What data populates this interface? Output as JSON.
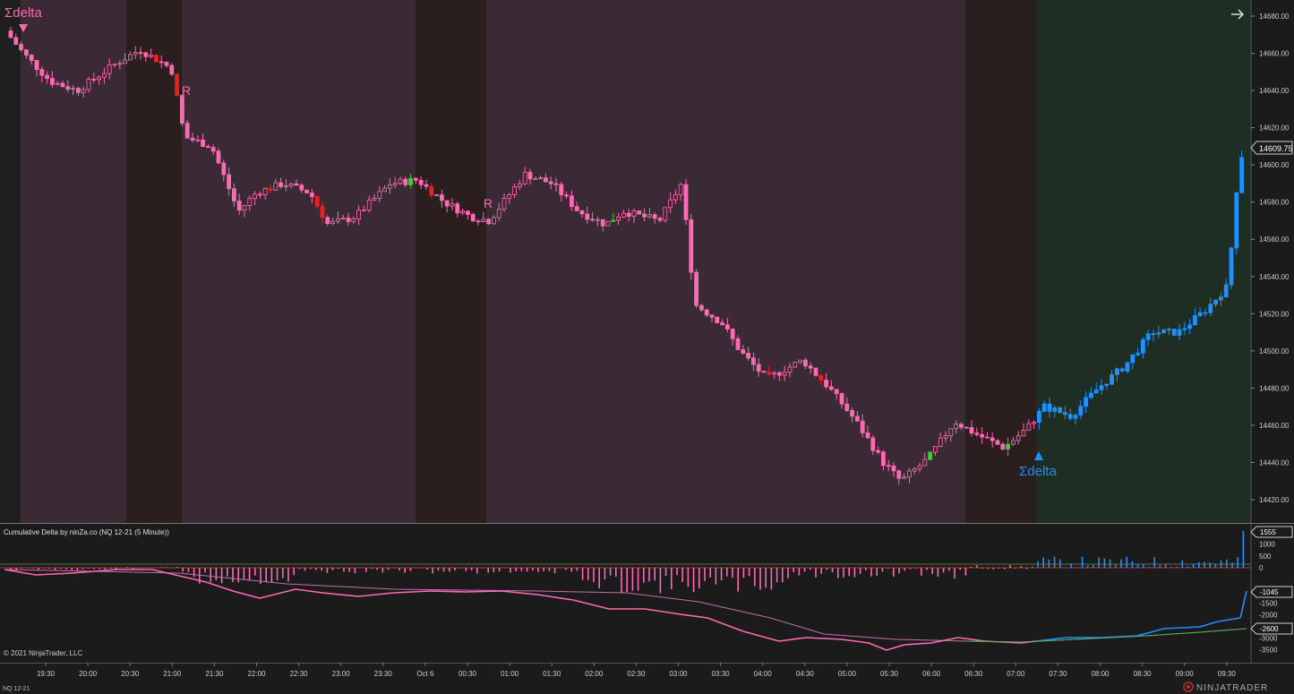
{
  "main_panel": {
    "signal_top": "Σdelta",
    "signal_bottom": "Σdelta",
    "r_marker_1": "R",
    "r_marker_2": "R",
    "price_badge": "14609.75",
    "price_axis_labels": [
      "14680.00",
      "14660.00",
      "14640.00",
      "14620.00",
      "14600.00",
      "14580.00",
      "14560.00",
      "14540.00",
      "14520.00",
      "14500.00",
      "14480.00",
      "14460.00",
      "14440.00",
      "14420.00"
    ],
    "price_axis_values": [
      14680,
      14660,
      14640,
      14620,
      14600,
      14580,
      14560,
      14540,
      14520,
      14500,
      14480,
      14460,
      14440,
      14420
    ],
    "arrow_icon": "→"
  },
  "indicator_panel": {
    "title": "Cumulative Delta by ninZa.co (NQ 12-21 (5 Minute))",
    "badge_top": "1555",
    "badge_mid": "-1045",
    "badge_low": "-2600",
    "axis_labels": [
      "1000",
      "500",
      "0",
      "-1500",
      "-2000",
      "-3000",
      "-3500"
    ],
    "axis_values": [
      1000,
      500,
      0,
      -1500,
      -2000,
      -3000,
      -3500
    ],
    "copyright": "© 2021 NinjaTrader, LLC"
  },
  "time_axis": {
    "labels": [
      "19:30",
      "20:00",
      "20:30",
      "21:00",
      "21:30",
      "22:00",
      "22:30",
      "23:00",
      "23:30",
      "Oct 6",
      "00:30",
      "01:00",
      "01:30",
      "02:00",
      "02:30",
      "03:00",
      "03:30",
      "04:00",
      "04:30",
      "05:00",
      "05:30",
      "06:00",
      "06:30",
      "07:00",
      "07:30",
      "08:00",
      "08:30",
      "09:00",
      "09:30"
    ]
  },
  "footer": {
    "instrument": "NQ 12-21",
    "logo_text": "NINJATRADER"
  },
  "colors": {
    "bearish": "#ff69b4",
    "bullish_up_bar": "#3ccc3c",
    "down_bar": "#e82020",
    "bull_trend": "#1e90ff",
    "session_dark": "#2a1e1e",
    "session_light": "#3a2a33",
    "rth_green": "#1e2e22"
  },
  "chart_data": {
    "type": "candlestick",
    "instrument": "NQ 12-21",
    "timeframe": "5 Minute",
    "ylim": [
      14415,
      14690
    ],
    "x": [
      "19:30",
      "20:00",
      "20:30",
      "21:00",
      "21:30",
      "22:00",
      "22:30",
      "23:00",
      "23:30",
      "Oct 6",
      "00:30",
      "01:00",
      "01:30",
      "02:00",
      "02:30",
      "03:00",
      "03:30",
      "04:00",
      "04:30",
      "05:00",
      "05:30",
      "06:00",
      "06:30",
      "07:00",
      "07:30",
      "08:00",
      "08:30",
      "09:00",
      "09:30"
    ],
    "close_approx": [
      14650,
      14638,
      14660,
      14620,
      14590,
      14578,
      14582,
      14570,
      14578,
      14582,
      14565,
      14572,
      14590,
      14578,
      14570,
      14585,
      14520,
      14500,
      14485,
      14462,
      14435,
      14442,
      14460,
      14445,
      14470,
      14478,
      14505,
      14512,
      14609.75
    ],
    "last_price": 14609.75,
    "cumulative_delta_last": -1045,
    "cumulative_delta_ma_last": -2600,
    "delta_bar_last": 1555
  }
}
